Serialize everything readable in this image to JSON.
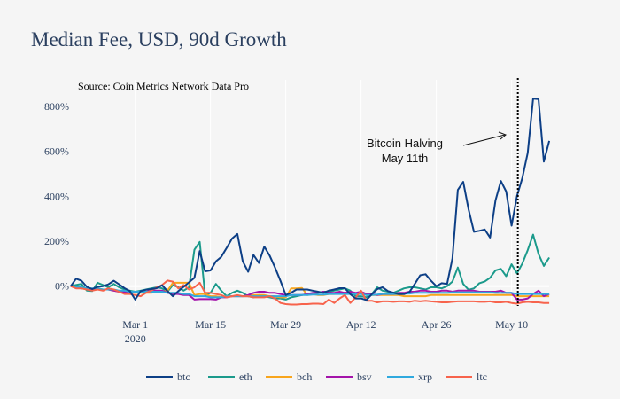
{
  "chart_data": {
    "type": "line",
    "title": "Median Fee, USD, 90d Growth",
    "subtitle": "Source: Coin Metrics Network Data Pro",
    "x_ticks": [
      {
        "date": "2020-03-01",
        "label": "Mar 1",
        "sublabel": "2020"
      },
      {
        "date": "2020-03-15",
        "label": "Mar 15",
        "sublabel": ""
      },
      {
        "date": "2020-03-29",
        "label": "Mar 29",
        "sublabel": ""
      },
      {
        "date": "2020-04-12",
        "label": "Apr 12",
        "sublabel": ""
      },
      {
        "date": "2020-04-26",
        "label": "Apr 26",
        "sublabel": ""
      },
      {
        "date": "2020-05-10",
        "label": "May 10",
        "sublabel": ""
      }
    ],
    "y_ticks": [
      {
        "value": 0,
        "label": "0%"
      },
      {
        "value": 200,
        "label": "200%"
      },
      {
        "value": 400,
        "label": "400%"
      },
      {
        "value": 600,
        "label": "600%"
      },
      {
        "value": 800,
        "label": "800%"
      }
    ],
    "ylim": [
      -120,
      830
    ],
    "y_unit": "%",
    "grid": "vertical gridlines and zero line",
    "legend_position": "bottom",
    "annotation": {
      "lines": [
        "Bitcoin Halving",
        "May 11th"
      ],
      "date": "2020-05-11",
      "style": "dotted vertical line with arrow"
    },
    "x": [
      "2020-02-18",
      "2020-02-19",
      "2020-02-20",
      "2020-02-21",
      "2020-02-22",
      "2020-02-23",
      "2020-02-24",
      "2020-02-25",
      "2020-02-26",
      "2020-02-27",
      "2020-02-28",
      "2020-02-29",
      "2020-03-01",
      "2020-03-02",
      "2020-03-03",
      "2020-03-04",
      "2020-03-05",
      "2020-03-06",
      "2020-03-07",
      "2020-03-08",
      "2020-03-09",
      "2020-03-10",
      "2020-03-11",
      "2020-03-12",
      "2020-03-13",
      "2020-03-14",
      "2020-03-15",
      "2020-03-16",
      "2020-03-17",
      "2020-03-18",
      "2020-03-19",
      "2020-03-20",
      "2020-03-21",
      "2020-03-22",
      "2020-03-23",
      "2020-03-24",
      "2020-03-25",
      "2020-03-26",
      "2020-03-27",
      "2020-03-28",
      "2020-03-29",
      "2020-03-30",
      "2020-03-31",
      "2020-04-01",
      "2020-04-02",
      "2020-04-03",
      "2020-04-04",
      "2020-04-05",
      "2020-04-06",
      "2020-04-07",
      "2020-04-08",
      "2020-04-09",
      "2020-04-10",
      "2020-04-11",
      "2020-04-12",
      "2020-04-13",
      "2020-04-14",
      "2020-04-15",
      "2020-04-16",
      "2020-04-17",
      "2020-04-18",
      "2020-04-19",
      "2020-04-20",
      "2020-04-21",
      "2020-04-22",
      "2020-04-23",
      "2020-04-24",
      "2020-04-25",
      "2020-04-26",
      "2020-04-27",
      "2020-04-28",
      "2020-04-29",
      "2020-04-30",
      "2020-05-01",
      "2020-05-02",
      "2020-05-03",
      "2020-05-04",
      "2020-05-05",
      "2020-05-06",
      "2020-05-07",
      "2020-05-08",
      "2020-05-09",
      "2020-05-10",
      "2020-05-11",
      "2020-05-12",
      "2020-05-13",
      "2020-05-14",
      "2020-05-15",
      "2020-05-16",
      "2020-05-17"
    ],
    "series": [
      {
        "name": "btc",
        "color": "#0d3f86",
        "values": [
          0,
          33,
          24,
          -3,
          -13,
          -3,
          0,
          8,
          24,
          8,
          -9,
          -22,
          -60,
          -22,
          -16,
          -13,
          -9,
          4,
          -22,
          -45,
          -22,
          -3,
          17,
          37,
          156,
          66,
          70,
          110,
          130,
          170,
          212,
          232,
          110,
          64,
          139,
          103,
          176,
          136,
          83,
          24,
          -40,
          -29,
          -15,
          -15,
          -15,
          -20,
          -25,
          -30,
          -20,
          -15,
          -9,
          -9,
          -36,
          -55,
          -55,
          -62,
          -36,
          -13,
          -5,
          -22,
          -29,
          -36,
          -36,
          -26,
          10,
          48,
          53,
          24,
          0,
          13,
          10,
          123,
          428,
          464,
          342,
          242,
          246,
          252,
          216,
          381,
          468,
          421,
          269,
          401,
          481,
          593,
          834,
          832,
          554,
          646
        ]
      },
      {
        "name": "eth",
        "color": "#1b9a8b",
        "values": [
          0,
          5,
          10,
          -20,
          -22,
          15,
          5,
          -5,
          10,
          -5,
          -15,
          -20,
          -25,
          -20,
          -15,
          -10,
          -5,
          -10,
          -25,
          5,
          -5,
          -20,
          -5,
          162,
          197,
          -40,
          -30,
          10,
          -20,
          -45,
          -30,
          -20,
          -30,
          -45,
          -50,
          -40,
          -45,
          -50,
          -55,
          -55,
          -60,
          -50,
          -45,
          -40,
          -35,
          -35,
          -30,
          -25,
          -25,
          -20,
          -15,
          -10,
          -20,
          -45,
          -45,
          -50,
          -35,
          -5,
          -20,
          -25,
          -30,
          -20,
          -10,
          -5,
          -5,
          -10,
          -15,
          -5,
          -5,
          -10,
          0,
          20,
          83,
          10,
          -16,
          -10,
          13,
          21,
          37,
          70,
          77,
          44,
          97,
          57,
          100,
          160,
          229,
          143,
          90,
          127
        ]
      },
      {
        "name": "bch",
        "color": "#f8a51c",
        "values": [
          0,
          -5,
          -10,
          -15,
          -15,
          -10,
          -15,
          -15,
          -20,
          -25,
          -25,
          -25,
          -30,
          -30,
          -30,
          -30,
          -25,
          -25,
          -20,
          15,
          15,
          15,
          15,
          -40,
          -35,
          -35,
          -45,
          -45,
          -50,
          -45,
          -45,
          -45,
          -45,
          -45,
          -40,
          -40,
          -40,
          -45,
          -45,
          -50,
          -50,
          -10,
          -10,
          -8,
          -40,
          -35,
          -40,
          -40,
          -35,
          -35,
          -30,
          -30,
          -30,
          -35,
          -25,
          -40,
          -40,
          -40,
          -40,
          -40,
          -40,
          -40,
          -45,
          -45,
          -45,
          -45,
          -45,
          -40,
          -40,
          -40,
          -40,
          -40,
          -40,
          -40,
          -40,
          -40,
          -40,
          -40,
          -40,
          -40,
          -40,
          -40,
          -40,
          -45,
          -45,
          -45,
          -45,
          -45,
          -45,
          -45
        ]
      },
      {
        "name": "bsv",
        "color": "#a414aa",
        "values": [
          0,
          -5,
          -10,
          -10,
          -15,
          -15,
          -15,
          -15,
          -20,
          -25,
          -25,
          -25,
          -25,
          -25,
          -25,
          -20,
          -20,
          -20,
          -30,
          -35,
          -35,
          -40,
          -40,
          -60,
          -58,
          -58,
          -58,
          -60,
          -50,
          -50,
          -45,
          -45,
          -45,
          -40,
          -30,
          -25,
          -25,
          -30,
          -30,
          -35,
          -40,
          -40,
          -40,
          -40,
          -35,
          -30,
          -30,
          -25,
          -30,
          -30,
          -25,
          -30,
          -25,
          -30,
          -25,
          -35,
          -35,
          -40,
          -35,
          -35,
          -35,
          -30,
          -30,
          -25,
          -25,
          -20,
          -20,
          -25,
          -25,
          -20,
          -20,
          -25,
          -20,
          -20,
          -20,
          -20,
          -25,
          -25,
          -25,
          -25,
          -20,
          -30,
          -30,
          -60,
          -60,
          -55,
          -35,
          -20,
          -45,
          -35
        ]
      },
      {
        "name": "xrp",
        "color": "#2fa9de",
        "values": [
          0,
          -5,
          -5,
          -10,
          -10,
          -10,
          -15,
          -15,
          -15,
          -20,
          -20,
          -25,
          -25,
          -25,
          -25,
          -25,
          -25,
          -25,
          -30,
          -30,
          -30,
          -35,
          -35,
          -45,
          -45,
          -45,
          -50,
          -50,
          -50,
          -45,
          -45,
          -45,
          -45,
          -45,
          -45,
          -45,
          -45,
          -45,
          -45,
          -45,
          -45,
          -40,
          -40,
          -40,
          -40,
          -38,
          -38,
          -38,
          -35,
          -35,
          -35,
          -35,
          -35,
          -35,
          -35,
          -40,
          -40,
          -38,
          -35,
          -35,
          -35,
          -35,
          -33,
          -33,
          -30,
          -30,
          -30,
          -30,
          -30,
          -30,
          -30,
          -28,
          -28,
          -28,
          -28,
          -28,
          -28,
          -28,
          -28,
          -30,
          -30,
          -30,
          -30,
          -35,
          -35,
          -35,
          -35,
          -35,
          -35,
          -35
        ]
      },
      {
        "name": "ltc",
        "color": "#f7634c",
        "values": [
          0,
          -10,
          -10,
          -15,
          -20,
          -15,
          -20,
          -10,
          -15,
          -25,
          -35,
          -35,
          -40,
          -45,
          -30,
          -20,
          -5,
          5,
          25,
          20,
          -10,
          5,
          -15,
          -5,
          15,
          -30,
          -30,
          -35,
          -40,
          -50,
          -45,
          -40,
          -45,
          -45,
          -50,
          -50,
          -50,
          -45,
          -55,
          -75,
          -80,
          -82,
          -82,
          -80,
          -80,
          -78,
          -78,
          -80,
          -60,
          -75,
          -55,
          -40,
          -75,
          -50,
          -20,
          -65,
          -65,
          -72,
          -68,
          -68,
          -70,
          -68,
          -68,
          -70,
          -65,
          -68,
          -65,
          -68,
          -70,
          -72,
          -72,
          -70,
          -68,
          -68,
          -68,
          -68,
          -70,
          -70,
          -68,
          -72,
          -72,
          -70,
          -75,
          -78,
          -72,
          -70,
          -72,
          -72,
          -75,
          -75
        ]
      }
    ]
  }
}
